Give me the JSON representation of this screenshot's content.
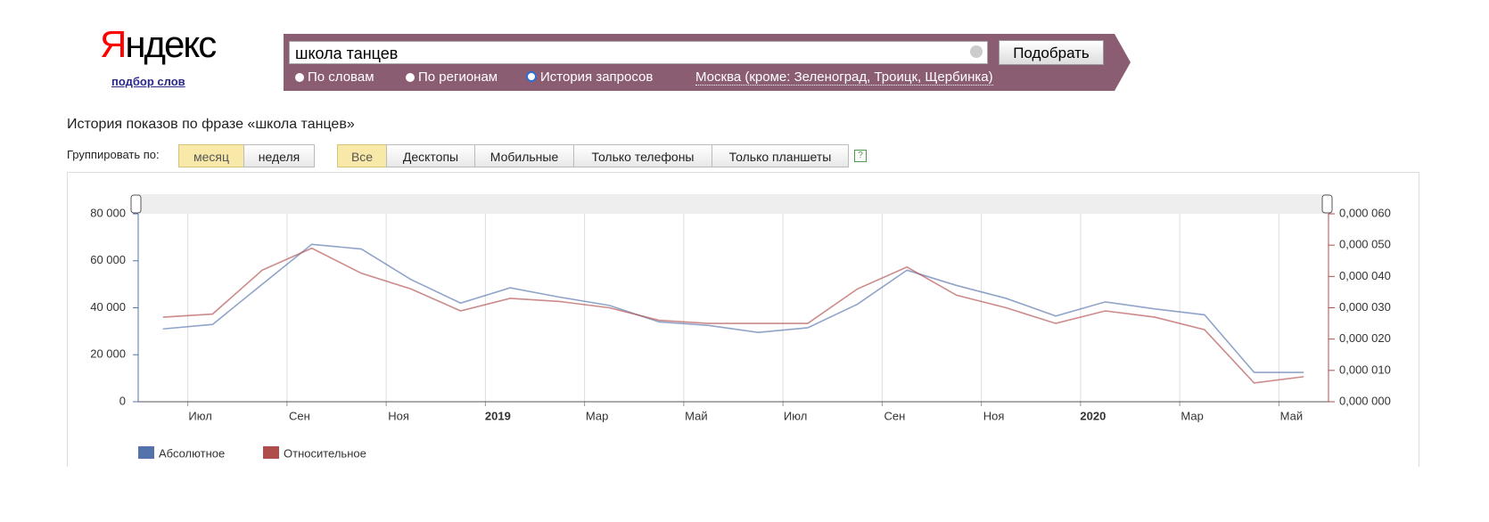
{
  "header": {
    "logo": "Яндекс",
    "subtitle": "подбор слов"
  },
  "search": {
    "query": "школа танцев",
    "button": "Подобрать",
    "modes": [
      "По словам",
      "По регионам",
      "История запросов"
    ],
    "region": "Москва (кроме: Зеленоград, Троицк, Щербинка)"
  },
  "heading": "История показов по фразе «школа танцев»",
  "controls": {
    "group_label": "Группировать по:",
    "group_options": [
      "месяц",
      "неделя"
    ],
    "device_options": [
      "Все",
      "Десктопы",
      "Мобильные",
      "Только телефоны",
      "Только планшеты"
    ],
    "help": "?"
  },
  "chart_data": {
    "type": "line",
    "categories": [
      null,
      "Июл",
      null,
      "Сен",
      null,
      "Ноя",
      null,
      "2019",
      null,
      "Мар",
      null,
      "Май",
      null,
      "Июл",
      null,
      "Сен",
      null,
      "Ноя",
      null,
      "2020",
      null,
      "Мар",
      null,
      "Май"
    ],
    "series": [
      {
        "name": "Абсолютное",
        "color": "#5473ac",
        "values": [
          31000,
          32900,
          50000,
          67000,
          65000,
          52000,
          42000,
          48500,
          44500,
          41000,
          34000,
          32500,
          29500,
          31500,
          41500,
          56000,
          49500,
          44000,
          36500,
          42500,
          39500,
          37000,
          12500,
          12500
        ]
      },
      {
        "name": "Относительное",
        "color": "#b04c4c",
        "axis": "y2",
        "values": [
          2.7e-05,
          2.8e-05,
          4.2e-05,
          4.9e-05,
          4.1e-05,
          3.6e-05,
          2.9e-05,
          3.3e-05,
          3.2e-05,
          3e-05,
          2.6e-05,
          2.5e-05,
          2.5e-05,
          2.5e-05,
          3.6e-05,
          4.3e-05,
          3.4e-05,
          3e-05,
          2.5e-05,
          2.9e-05,
          2.7e-05,
          2.3e-05,
          6e-06,
          8e-06
        ]
      }
    ],
    "ylim": [
      0,
      80000
    ],
    "yticks": [
      0,
      {
        "value": 20000,
        "label": "20 000"
      },
      {
        "value": 40000,
        "label": "40 000"
      },
      {
        "value": 60000,
        "label": "60 000"
      },
      {
        "value": 80000,
        "label": "80 000"
      }
    ],
    "y2lim": [
      0,
      6e-05
    ],
    "y2ticks": [
      {
        "value": 0,
        "label": "0,000 000"
      },
      {
        "value": 1e-05,
        "label": "0,000 010"
      },
      {
        "value": 2e-05,
        "label": "0,000 020"
      },
      {
        "value": 3e-05,
        "label": "0,000 030"
      },
      {
        "value": 4e-05,
        "label": "0,000 040"
      },
      {
        "value": 5e-05,
        "label": "0,000 050"
      },
      {
        "value": 6e-05,
        "label": "0,000 060"
      }
    ],
    "grid": true
  }
}
